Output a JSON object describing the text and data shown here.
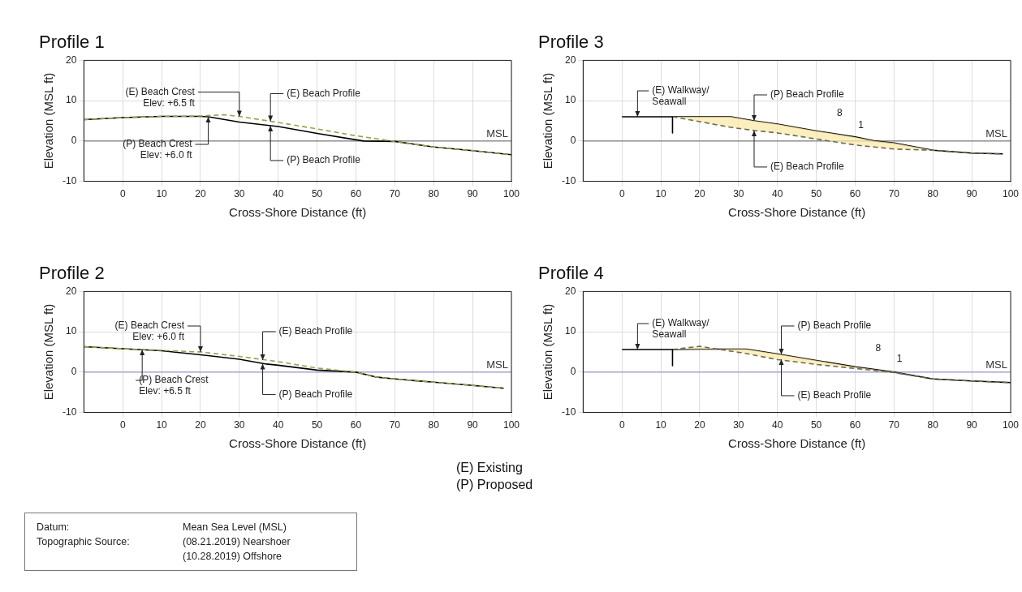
{
  "chart_data": [
    {
      "type": "line",
      "title": "Profile 1",
      "xlabel": "Cross-Shore Distance (ft)",
      "ylabel": "Elevation (MSL ft)",
      "xlim": [
        -10,
        100
      ],
      "xticks": [
        0,
        10,
        20,
        30,
        40,
        50,
        60,
        70,
        80,
        90,
        100
      ],
      "ylim": [
        -10,
        20
      ],
      "yticks": [
        -10,
        0,
        10,
        20
      ],
      "grid": true,
      "legend": false,
      "marker": "none",
      "series": [
        {
          "color": "#9aa050",
          "line_style": "dashed",
          "x": [
            -10,
            0,
            10,
            20,
            26,
            30,
            40,
            50,
            60,
            70,
            80,
            90,
            100
          ],
          "values": [
            5.3,
            5.8,
            6.1,
            6.2,
            6.5,
            6.1,
            4.6,
            3.0,
            1.3,
            -0.1,
            -1.5,
            -2.4,
            -3.4
          ]
        },
        {
          "color": "#000000",
          "line_style": "solid",
          "x": [
            -10,
            0,
            10,
            20,
            22,
            30,
            40,
            50,
            60,
            62,
            70,
            80,
            90,
            100
          ],
          "values": [
            5.3,
            5.8,
            6.1,
            6.1,
            6.0,
            4.7,
            3.6,
            1.9,
            0.3,
            0,
            -0.1,
            -1.5,
            -2.4,
            -3.4
          ]
        }
      ],
      "ref_lines": [
        {
          "axis": "y",
          "value": 0,
          "label": "MSL",
          "color": "#808080"
        }
      ],
      "annotations": [
        {
          "text": "(E) Beach Crest\nElev: +6.5 ft",
          "x": 30,
          "y": 6.1
        },
        {
          "text": "(P) Beach Crest\nElev: +6.0 ft",
          "x": 22,
          "y": 6.0
        },
        {
          "text": "(E) Beach Profile",
          "x": 38,
          "y": 4.9
        },
        {
          "text": "(P) Beach Profile",
          "x": 38,
          "y": 3.8
        }
      ]
    },
    {
      "type": "line",
      "title": "Profile 3",
      "xlabel": "Cross-Shore Distance (ft)",
      "ylabel": "Elevation (MSL ft)",
      "xlim": [
        -10,
        100
      ],
      "xticks": [
        0,
        10,
        20,
        30,
        40,
        50,
        60,
        70,
        80,
        90,
        100
      ],
      "ylim": [
        -10,
        20
      ],
      "yticks": [
        -10,
        0,
        10,
        20
      ],
      "grid": true,
      "legend": false,
      "marker": "none",
      "series": [
        {
          "color": "#000000",
          "line_style": "solid",
          "x": [
            0,
            13,
            13
          ],
          "values": [
            6,
            6,
            2
          ]
        },
        {
          "color": "#6b6b50",
          "line_style": "dashed",
          "x": [
            13,
            20,
            28,
            34,
            40,
            50,
            60,
            65,
            70,
            80,
            90,
            98
          ],
          "values": [
            6,
            4.8,
            3.4,
            2.6,
            2,
            0.5,
            -1,
            -1.5,
            -2,
            -2.3,
            -3,
            -3.2
          ]
        },
        {
          "color": "#000000",
          "line_style": "solid",
          "x": [
            13,
            20,
            28,
            34,
            40,
            50,
            60,
            65,
            70,
            80,
            90,
            98
          ],
          "values": [
            6,
            6,
            6,
            5,
            4.2,
            2.5,
            1,
            0,
            -0.5,
            -2.3,
            -3,
            -3.2
          ],
          "lower": [
            6,
            4.8,
            3.4,
            2.6,
            2,
            0.5,
            -1,
            -1.5,
            -2,
            -2.3,
            -3,
            -3.2
          ],
          "upper": [
            6,
            6,
            6,
            5,
            4.2,
            2.5,
            1,
            0,
            -0.5,
            -2.3,
            -3,
            -3.2
          ]
        }
      ],
      "ref_lines": [
        {
          "axis": "y",
          "value": 0,
          "label": "MSL",
          "color": "#808080"
        }
      ],
      "annotations": [
        {
          "text": "(E) Walkway/\nSeawall",
          "x": 4,
          "y": 6
        },
        {
          "text": "(P) Beach Profile",
          "x": 34,
          "y": 5
        },
        {
          "text": "(E) Beach Profile",
          "x": 34,
          "y": 2.6
        },
        "8",
        "1"
      ]
    },
    {
      "type": "line",
      "title": "Profile 2",
      "xlabel": "Cross-Shore Distance (ft)",
      "ylabel": "Elevation (MSL ft)",
      "xlim": [
        -10,
        100
      ],
      "xticks": [
        0,
        10,
        20,
        30,
        40,
        50,
        60,
        70,
        80,
        90,
        100
      ],
      "ylim": [
        -10,
        20
      ],
      "yticks": [
        -10,
        0,
        10,
        20
      ],
      "grid": true,
      "legend": false,
      "marker": "none",
      "series": [
        {
          "color": "#9aa050",
          "line_style": "dashed",
          "x": [
            -10,
            0,
            10,
            20,
            30,
            40,
            50,
            60,
            65,
            70,
            80,
            90,
            98
          ],
          "values": [
            6.3,
            5.8,
            5.4,
            5.0,
            3.9,
            2.6,
            1.0,
            0,
            -1.2,
            -1.7,
            -2.5,
            -3.3,
            -4.0
          ]
        },
        {
          "color": "#000000",
          "line_style": "solid",
          "x": [
            -10,
            0,
            10,
            20,
            30,
            37,
            40,
            50,
            60,
            65,
            70,
            80,
            90,
            98
          ],
          "values": [
            6.3,
            5.8,
            5.3,
            4.3,
            3.2,
            2.0,
            1.7,
            0.5,
            0,
            -1.2,
            -1.7,
            -2.5,
            -3.3,
            -4.0
          ]
        }
      ],
      "ref_lines": [
        {
          "axis": "y",
          "value": 0,
          "label": "MSL",
          "color": "#9999cc"
        }
      ],
      "annotations": [
        {
          "text": "(E) Beach Crest\nElev: +6.0 ft",
          "x": 20,
          "y": 5.0
        },
        {
          "text": "(P) Beach Crest\nElev: +6.5 ft",
          "x": 5,
          "y": 5.6
        },
        {
          "text": "(E) Beach Profile",
          "x": 36,
          "y": 3.0
        },
        {
          "text": "(P) Beach Profile",
          "x": 36,
          "y": 2.1
        }
      ]
    },
    {
      "type": "line",
      "title": "Profile 4",
      "xlabel": "Cross-Shore Distance (ft)",
      "ylabel": "Elevation (MSL ft)",
      "xlim": [
        -10,
        100
      ],
      "xticks": [
        0,
        10,
        20,
        30,
        40,
        50,
        60,
        70,
        80,
        90,
        100
      ],
      "ylim": [
        -10,
        20
      ],
      "yticks": [
        -10,
        0,
        10,
        20
      ],
      "grid": true,
      "legend": false,
      "marker": "none",
      "series": [
        {
          "color": "#000000",
          "line_style": "solid",
          "x": [
            0,
            13,
            13
          ],
          "values": [
            5.6,
            5.6,
            1.6
          ]
        },
        {
          "color": "#6b6b50",
          "line_style": "dashed",
          "x": [
            13,
            20,
            28,
            32,
            40,
            50,
            60,
            70,
            80,
            90,
            100
          ],
          "values": [
            5.6,
            6.4,
            5.2,
            4.6,
            3.1,
            1.9,
            0.9,
            -0.1,
            -1.7,
            -2.2,
            -2.6
          ]
        },
        {
          "color": "#000000",
          "line_style": "solid",
          "x": [
            13,
            20,
            28,
            32,
            40,
            50,
            60,
            70,
            80,
            90,
            100
          ],
          "values": [
            5.6,
            5.7,
            5.7,
            5.7,
            4.5,
            2.9,
            1.3,
            0,
            -1.7,
            -2.2,
            -2.6
          ],
          "lower": [
            5.6,
            6.4,
            5.2,
            4.6,
            3.1,
            1.9,
            0.9,
            -0.1,
            -1.7,
            -2.2,
            -2.6
          ],
          "upper": [
            5.6,
            5.7,
            5.7,
            5.7,
            4.5,
            2.9,
            1.3,
            0,
            -1.7,
            -2.2,
            -2.6
          ]
        }
      ],
      "ref_lines": [
        {
          "axis": "y",
          "value": 0,
          "label": "MSL",
          "color": "#9999cc"
        }
      ],
      "annotations": [
        {
          "text": "(E) Walkway/\nSeawall",
          "x": 4,
          "y": 5.6
        },
        {
          "text": "(P) Beach Profile",
          "x": 41,
          "y": 4.4
        },
        {
          "text": "(E) Beach Profile",
          "x": 41,
          "y": 3.2
        },
        "8",
        "1"
      ]
    },
    {
      "type": "other",
      "annotations": [
        "(E) Existing",
        "(P) Proposed",
        "Datum:",
        "Mean Sea Level (MSL)",
        "Topographic Source:",
        "(08.21.2019) Nearshoer",
        "(10.28.2019) Offshore"
      ]
    }
  ]
}
